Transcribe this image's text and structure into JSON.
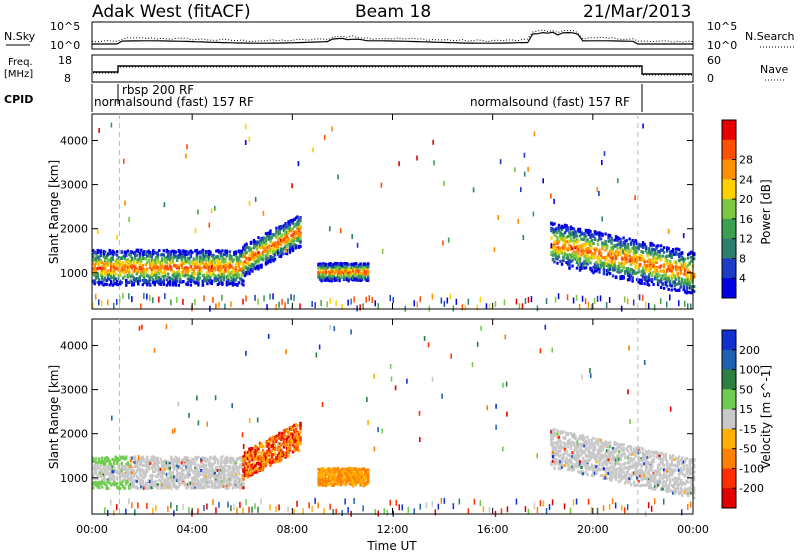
{
  "header": {
    "station": "Adak West (fitACF)",
    "beam": "Beam 18",
    "date": "21/Mar/2013"
  },
  "noise_panel": {
    "left_label": "N.Sky",
    "left_ticks": [
      "10^5",
      "10^0"
    ],
    "right_ticks": [
      "10^5",
      "10^0"
    ],
    "right_label": "N.Search"
  },
  "freq_panel": {
    "left_label_1": "Freq.",
    "left_label_2": "[MHz]",
    "left_ticks": [
      "18",
      "8"
    ],
    "right_ticks": [
      "60",
      "0"
    ],
    "right_label": "Nave"
  },
  "cpid": {
    "label": "CPID",
    "programs": [
      "normalsound (fast) 157 RF",
      "rbsp 200 RF",
      "normalsound (fast) 157 RF"
    ]
  },
  "chart_data": [
    {
      "type": "heatmap",
      "panel": "power",
      "ylabel": "Slant Range [km]",
      "ylim": [
        180,
        4600
      ],
      "yticks": [
        1000,
        2000,
        3000,
        4000
      ],
      "xticks": [
        "00:00",
        "04:00",
        "08:00",
        "12:00",
        "16:00",
        "20:00",
        "00:00"
      ],
      "colorbar_label": "Power [dB]",
      "colorbar_ticks": [
        4,
        8,
        12,
        16,
        20,
        24,
        28
      ],
      "colors": [
        "#0000e0",
        "#1e3cc8",
        "#2f7f6f",
        "#3ca050",
        "#7cc840",
        "#ffd000",
        "#ff9000",
        "#ff5000",
        "#e80000"
      ],
      "bands": [
        {
          "from_h": 0.0,
          "to_h": 6.0,
          "center_km": 1150,
          "width_km": 500,
          "note": "strong scatter, 16-28 dB core"
        },
        {
          "from_h": 6.0,
          "to_h": 8.3,
          "center_km": 1800,
          "width_km": 450,
          "note": "rising arc to ~2000 km"
        },
        {
          "from_h": 9.0,
          "to_h": 11.0,
          "center_km": 1050,
          "width_km": 250,
          "note": "weak patches ~4-8 dB"
        },
        {
          "from_h": 18.3,
          "to_h": 24.0,
          "center_km": 1300,
          "width_km": 600,
          "note": "descending band, strong near 22-24 h"
        }
      ]
    },
    {
      "type": "heatmap",
      "panel": "velocity",
      "ylabel": "Slant Range [km]",
      "ylim": [
        180,
        4600
      ],
      "yticks": [
        1000,
        2000,
        3000,
        4000
      ],
      "xticks": [
        "00:00",
        "04:00",
        "08:00",
        "12:00",
        "16:00",
        "20:00",
        "00:00"
      ],
      "xlabel": "Time UT",
      "colorbar_label": "Velocity [m s^-1]",
      "colorbar_ticks": [
        200,
        100,
        50,
        15,
        -15,
        -50,
        -100,
        -200
      ],
      "colors": [
        "#1030d0",
        "#2060b0",
        "#2e8040",
        "#70cc50",
        "#c8c8c8",
        "#ffb000",
        "#ff8000",
        "#ff3000",
        "#e00000"
      ],
      "bands": [
        {
          "from_h": 0.0,
          "to_h": 6.0,
          "center_km": 1150,
          "width_km": 450,
          "note": "ground scatter, ~0 m/s (grey)"
        },
        {
          "from_h": 6.0,
          "to_h": 8.3,
          "center_km": 1800,
          "width_km": 400,
          "note": "orange/red, -50 to -200 m/s"
        },
        {
          "from_h": 9.0,
          "to_h": 11.0,
          "center_km": 1050,
          "width_km": 250,
          "note": "orange, ~-50 m/s"
        },
        {
          "from_h": 18.3,
          "to_h": 24.0,
          "center_km": 1300,
          "width_km": 550,
          "note": "mostly grey ground scatter"
        }
      ]
    }
  ]
}
